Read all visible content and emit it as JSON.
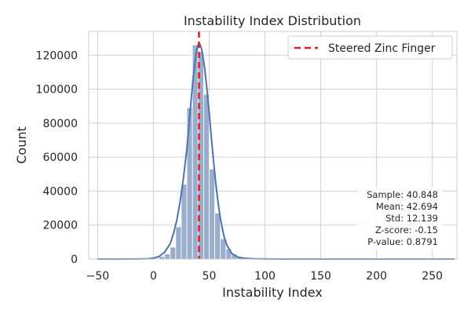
{
  "chart_data": {
    "type": "bar",
    "title": "Instability Index Distribution",
    "xlabel": "Instability Index",
    "ylabel": "Count",
    "xlim": [
      -58,
      272
    ],
    "ylim": [
      0,
      134000
    ],
    "xticks": [
      -50,
      0,
      50,
      100,
      150,
      200,
      250
    ],
    "yticks": [
      0,
      20000,
      40000,
      60000,
      80000,
      100000,
      120000
    ],
    "grid": true,
    "legend_position": "top-right",
    "bin_width": 5,
    "bins": [
      {
        "x0": 5,
        "x1": 10,
        "count": 1500
      },
      {
        "x0": 10,
        "x1": 15,
        "count": 3000
      },
      {
        "x0": 15,
        "x1": 20,
        "count": 7000
      },
      {
        "x0": 20,
        "x1": 25,
        "count": 19000
      },
      {
        "x0": 25,
        "x1": 30,
        "count": 44000
      },
      {
        "x0": 30,
        "x1": 35,
        "count": 89000
      },
      {
        "x0": 35,
        "x1": 40,
        "count": 126000
      },
      {
        "x0": 40,
        "x1": 45,
        "count": 122000
      },
      {
        "x0": 45,
        "x1": 50,
        "count": 97000
      },
      {
        "x0": 50,
        "x1": 55,
        "count": 53000
      },
      {
        "x0": 55,
        "x1": 60,
        "count": 27000
      },
      {
        "x0": 60,
        "x1": 65,
        "count": 12000
      },
      {
        "x0": 65,
        "x1": 70,
        "count": 6000
      },
      {
        "x0": 70,
        "x1": 75,
        "count": 3000
      },
      {
        "x0": 75,
        "x1": 80,
        "count": 1500
      },
      {
        "x0": 80,
        "x1": 85,
        "count": 800
      }
    ],
    "kde_curve": {
      "x": [
        -50,
        -30,
        -15,
        -5,
        0,
        5,
        10,
        15,
        18,
        21,
        24,
        27,
        30,
        32,
        34,
        36,
        38,
        40,
        41,
        42,
        43,
        44,
        46,
        48,
        50,
        52,
        54,
        56,
        58,
        60,
        63,
        66,
        70,
        75,
        80,
        90,
        100,
        120,
        150,
        200,
        270
      ],
      "y": [
        0,
        0,
        50,
        200,
        500,
        1500,
        4000,
        9000,
        15000,
        23000,
        34000,
        48000,
        65000,
        80000,
        95000,
        109000,
        120000,
        126000,
        127000,
        126000,
        124000,
        121000,
        112000,
        100000,
        86000,
        71000,
        57000,
        44000,
        33000,
        24000,
        14000,
        8000,
        3500,
        1300,
        500,
        150,
        50,
        10,
        0,
        0,
        0
      ]
    },
    "series": [
      {
        "name": "Steered Zinc Finger",
        "type": "vline",
        "x": 40.848,
        "color": "#e31a1c"
      }
    ],
    "colors": {
      "bars": "#9aaecc",
      "bar_edge": "#ffffff",
      "kde": "#4c72b0",
      "vline": "#e31a1c",
      "grid": "#d0d0d0"
    },
    "stats": {
      "sample": "Sample: 40.848",
      "mean": "Mean: 42.694",
      "std": "Std: 12.139",
      "zscore": "Z-score: -0.15",
      "pvalue": "P-value: 0.8791"
    }
  }
}
